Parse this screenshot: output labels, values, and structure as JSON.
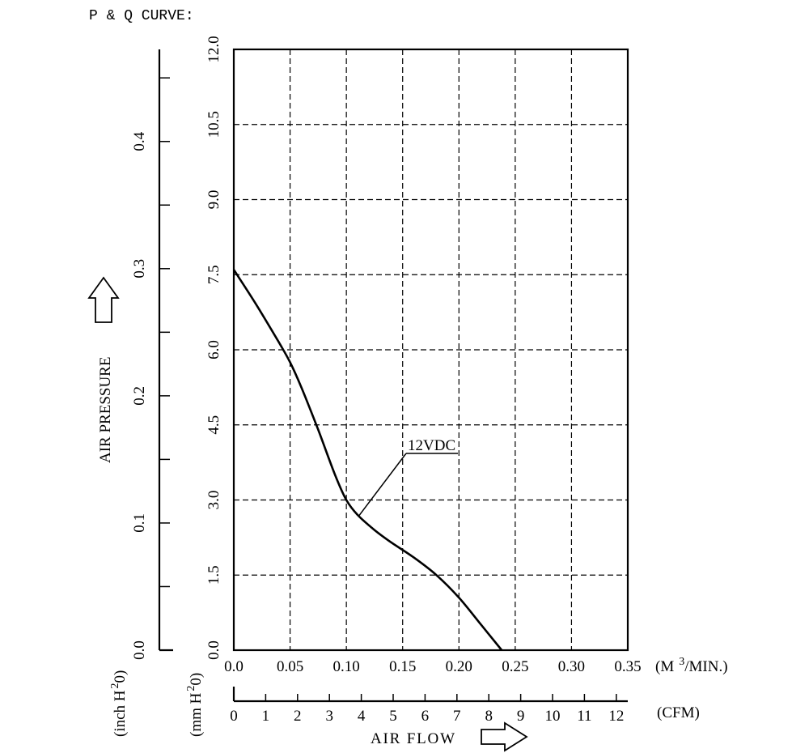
{
  "page_title": "P & Q CURVE:",
  "chart_data": {
    "type": "line",
    "title": "P & Q CURVE:",
    "x_primary": {
      "label": "AIR FLOW",
      "unit_prefix": "(M",
      "unit_sup": "3",
      "unit_suffix": "/MIN.)",
      "range": [
        0,
        0.35
      ],
      "tick_values": [
        0,
        0.05,
        0.1,
        0.15,
        0.2,
        0.25,
        0.3,
        0.35
      ],
      "tick_labels": [
        "0.0",
        "0.05",
        "0.10",
        "0.15",
        "0.20",
        "0.25",
        "0.30",
        "0.35"
      ]
    },
    "x_secondary": {
      "unit": "(CFM)",
      "range": [
        0,
        12.36
      ],
      "tick_values": [
        0,
        1,
        2,
        3,
        4,
        5,
        6,
        7,
        8,
        9,
        10,
        11,
        12
      ],
      "tick_labels": [
        "0",
        "1",
        "2",
        "3",
        "4",
        "5",
        "6",
        "7",
        "8",
        "9",
        "10",
        "11",
        "12"
      ]
    },
    "y_primary": {
      "label": "AIR PRESSURE",
      "unit_prefix": "(mm H",
      "unit_sup": "2",
      "unit_suffix": "0)",
      "range": [
        0,
        12.0
      ],
      "tick_values": [
        0,
        1.5,
        3.0,
        4.5,
        6.0,
        7.5,
        9.0,
        10.5,
        12.0
      ],
      "tick_labels": [
        "0.0",
        "1.5",
        "3.0",
        "4.5",
        "6.0",
        "7.5",
        "9.0",
        "10.5",
        "12.0"
      ]
    },
    "y_secondary": {
      "unit_prefix": "(inch H",
      "unit_sup": "2",
      "unit_suffix": "0)",
      "range": [
        0,
        0.4724
      ],
      "tick_values": [
        0,
        0.05,
        0.1,
        0.15,
        0.2,
        0.25,
        0.3,
        0.35,
        0.4,
        0.45
      ],
      "labeled_values": [
        0,
        0.1,
        0.2,
        0.3,
        0.4
      ],
      "tick_labels": [
        "0.0",
        "0.1",
        "0.2",
        "0.3",
        "0.4"
      ]
    },
    "grid": true,
    "series": [
      {
        "name": "12VDC",
        "x": [
          0.0,
          0.02,
          0.04,
          0.05,
          0.06,
          0.075,
          0.09,
          0.1,
          0.11,
          0.125,
          0.14,
          0.16,
          0.18,
          0.2,
          0.22,
          0.238
        ],
        "y": [
          7.6,
          6.9,
          6.15,
          5.75,
          5.25,
          4.4,
          3.5,
          3.0,
          2.7,
          2.4,
          2.15,
          1.85,
          1.5,
          1.05,
          0.5,
          0.0
        ]
      }
    ],
    "annotations": [
      {
        "text": "12VDC",
        "series": "12VDC",
        "at_x": 0.111
      }
    ]
  }
}
